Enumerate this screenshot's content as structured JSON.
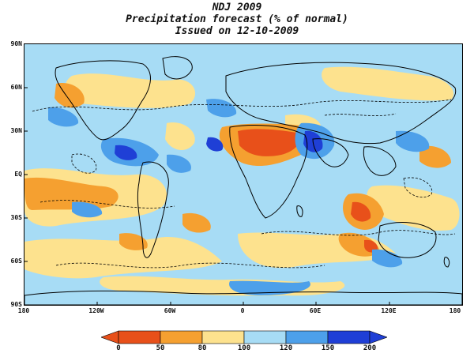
{
  "title": {
    "line1": "NDJ 2009",
    "line2": "Precipitation forecast (% of normal)",
    "line3": "Issued on 12-10-2009"
  },
  "map": {
    "lat_ticks": [
      "90N",
      "60N",
      "30N",
      "EQ",
      "30S",
      "60S",
      "90S"
    ],
    "lon_ticks": [
      "180",
      "120W",
      "60W",
      "0",
      "60E",
      "120E",
      "180"
    ],
    "land_outline_color": "#000000",
    "dashed_contours": true
  },
  "colorbar": {
    "labels": [
      "0",
      "50",
      "80",
      "100",
      "120",
      "150",
      "200"
    ],
    "colors": [
      "#e8501a",
      "#f5a030",
      "#fde28e",
      "#ffffff",
      "#a7dcf5",
      "#4da0ea",
      "#1f3fd6"
    ],
    "bins": [
      {
        "range": "0-50",
        "color": "#e8501a"
      },
      {
        "range": "50-80",
        "color": "#f5a030"
      },
      {
        "range": "80-100",
        "color": "#fde28e"
      },
      {
        "range": "100-120",
        "color": "#a7dcf5"
      },
      {
        "range": "120-150",
        "color": "#4da0ea"
      },
      {
        "range": "150-200",
        "color": "#1f3fd6"
      }
    ]
  }
}
